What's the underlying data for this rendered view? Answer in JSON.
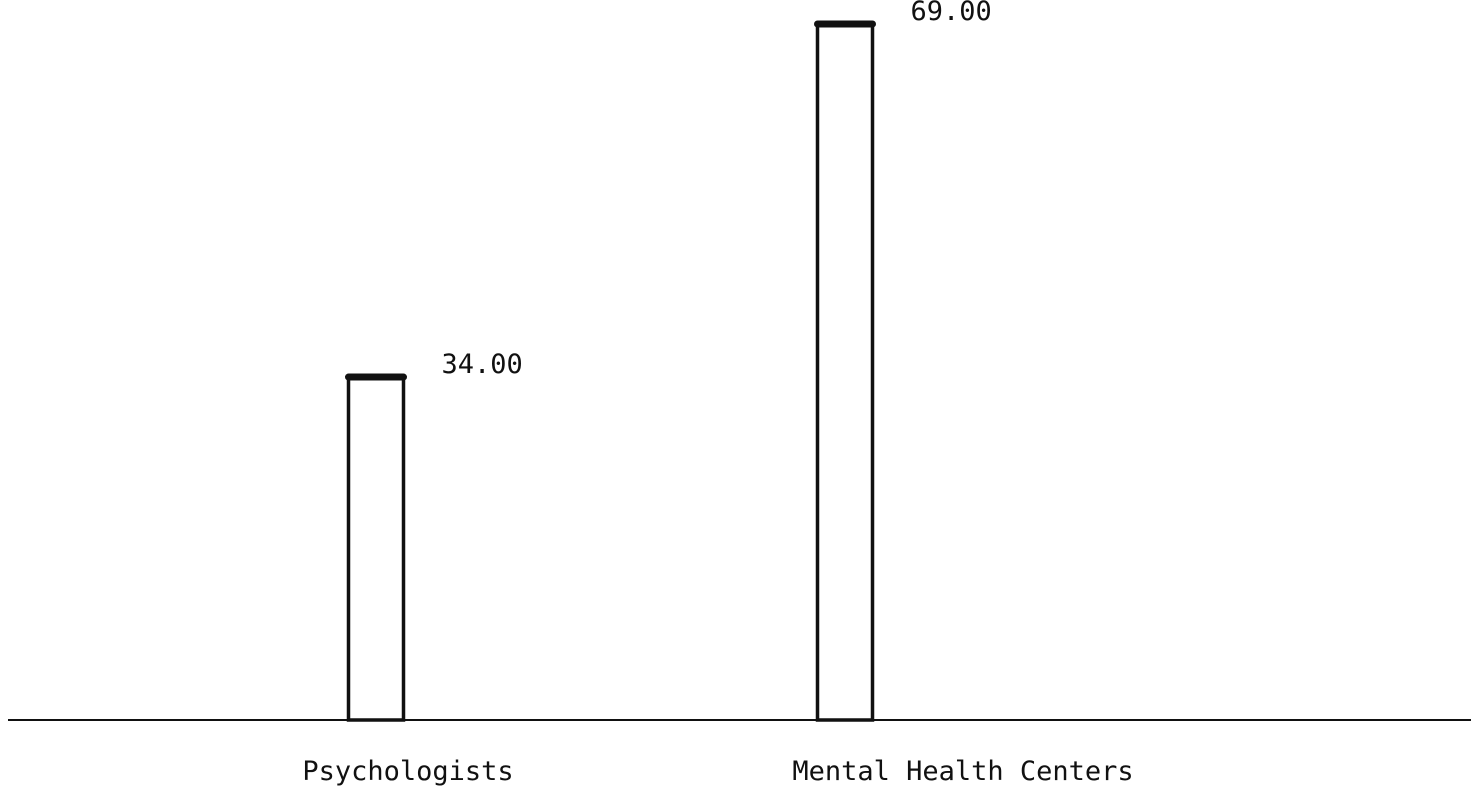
{
  "chart_data": {
    "type": "bar",
    "categories": [
      "Psychologists",
      "Mental Health Centers"
    ],
    "values": [
      34.0,
      69.0
    ],
    "value_labels": [
      "34.00",
      "69.00"
    ],
    "title": "",
    "xlabel": "",
    "ylabel": "",
    "ylim": [
      0,
      69
    ],
    "grid": false,
    "legend": "none",
    "colors": {
      "bar_fill": "#ffffff",
      "bar_outline": "#111111",
      "axis": "#111111",
      "text": "#111111"
    }
  }
}
